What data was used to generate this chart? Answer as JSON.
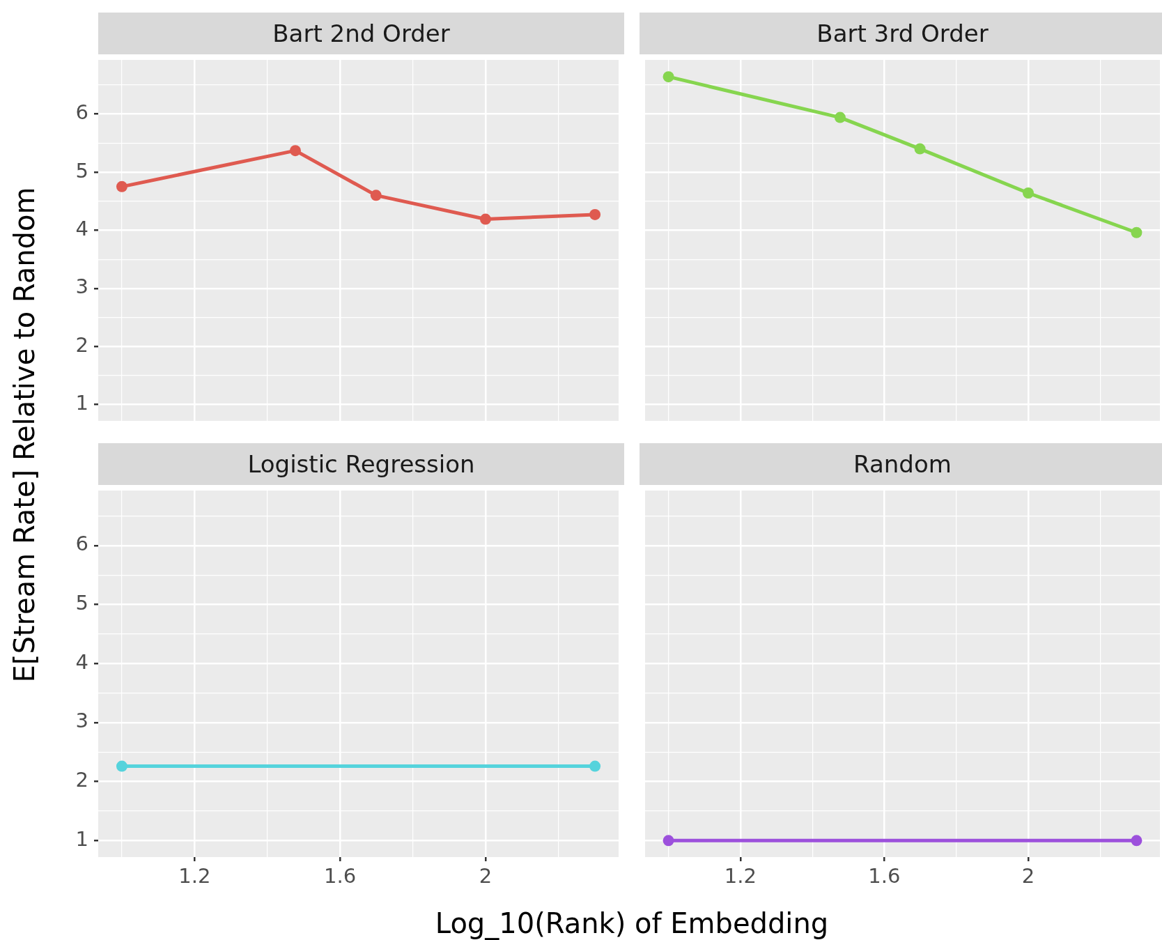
{
  "chart_data": [
    {
      "type": "line",
      "title": "Bart 2nd Order",
      "ylabel": "E[Stream Rate] Relative to Random",
      "x": [
        1,
        1.477,
        1.699,
        2,
        2.301
      ],
      "series": [
        {
          "color": "#df5a50",
          "values": [
            4.75,
            5.37,
            4.6,
            4.19,
            4.27
          ]
        }
      ],
      "xlim": [
        0.935,
        2.366
      ],
      "ylim": [
        0.72,
        6.93
      ],
      "xticks": [
        {
          "value": 1,
          "label": null
        },
        1.2,
        {
          "value": 1.4,
          "label": null
        },
        1.6,
        {
          "value": 1.8,
          "label": null
        },
        2,
        {
          "value": 2.2,
          "label": null
        }
      ],
      "yticks": [
        1,
        {
          "value": 1.5,
          "label": null
        },
        2,
        {
          "value": 2.5,
          "label": null
        },
        3,
        {
          "value": 3.5,
          "label": null
        },
        4,
        {
          "value": 4.5,
          "label": null
        },
        5,
        {
          "value": 5.5,
          "label": null
        },
        6,
        {
          "value": 6.5,
          "label": null
        }
      ],
      "grid": true,
      "marker": "circle",
      "line_style": "solid",
      "tick_labels": "y"
    },
    {
      "type": "line",
      "title": "Bart 3rd Order",
      "x": [
        1,
        1.477,
        1.699,
        2,
        2.301
      ],
      "series": [
        {
          "color": "#86d54f",
          "values": [
            6.64,
            5.94,
            5.4,
            4.64,
            3.96
          ]
        }
      ],
      "xlim": [
        0.935,
        2.366
      ],
      "ylim": [
        0.72,
        6.93
      ],
      "xticks": [
        {
          "value": 1,
          "label": null
        },
        1.2,
        {
          "value": 1.4,
          "label": null
        },
        1.6,
        {
          "value": 1.8,
          "label": null
        },
        2,
        {
          "value": 2.2,
          "label": null
        }
      ],
      "yticks": [
        1,
        {
          "value": 1.5,
          "label": null
        },
        2,
        {
          "value": 2.5,
          "label": null
        },
        3,
        {
          "value": 3.5,
          "label": null
        },
        4,
        {
          "value": 4.5,
          "label": null
        },
        5,
        {
          "value": 5.5,
          "label": null
        },
        6,
        {
          "value": 6.5,
          "label": null
        }
      ],
      "grid": true,
      "marker": "circle",
      "line_style": "solid",
      "tick_labels": false
    },
    {
      "type": "line",
      "title": "Logistic Regression",
      "xlabel": "Log_10(Rank) of Embedding",
      "x": [
        1,
        2.301
      ],
      "series": [
        {
          "color": "#55d3dc",
          "values": [
            2.26,
            2.26
          ]
        }
      ],
      "xlim": [
        0.935,
        2.366
      ],
      "ylim": [
        0.72,
        6.93
      ],
      "xticks": [
        {
          "value": 1,
          "label": null
        },
        1.2,
        {
          "value": 1.4,
          "label": null
        },
        1.6,
        {
          "value": 1.8,
          "label": null
        },
        2,
        {
          "value": 2.2,
          "label": null
        }
      ],
      "yticks": [
        1,
        {
          "value": 1.5,
          "label": null
        },
        2,
        {
          "value": 2.5,
          "label": null
        },
        3,
        {
          "value": 3.5,
          "label": null
        },
        4,
        {
          "value": 4.5,
          "label": null
        },
        5,
        {
          "value": 5.5,
          "label": null
        },
        6,
        {
          "value": 6.5,
          "label": null
        }
      ],
      "grid": true,
      "marker": "circle",
      "line_style": "solid"
    },
    {
      "type": "line",
      "title": "Random",
      "x": [
        1,
        2.301
      ],
      "series": [
        {
          "color": "#9c50dc",
          "values": [
            1,
            1
          ]
        }
      ],
      "xlim": [
        0.935,
        2.366
      ],
      "ylim": [
        0.72,
        6.93
      ],
      "xticks": [
        {
          "value": 1,
          "label": null
        },
        1.2,
        {
          "value": 1.4,
          "label": null
        },
        1.6,
        {
          "value": 1.8,
          "label": null
        },
        2,
        {
          "value": 2.2,
          "label": null
        }
      ],
      "yticks": [
        1,
        {
          "value": 1.5,
          "label": null
        },
        2,
        {
          "value": 2.5,
          "label": null
        },
        3,
        {
          "value": 3.5,
          "label": null
        },
        4,
        {
          "value": 4.5,
          "label": null
        },
        5,
        {
          "value": 5.5,
          "label": null
        },
        6,
        {
          "value": 6.5,
          "label": null
        }
      ],
      "grid": true,
      "marker": "circle",
      "line_style": "solid",
      "tick_labels": "x"
    }
  ]
}
